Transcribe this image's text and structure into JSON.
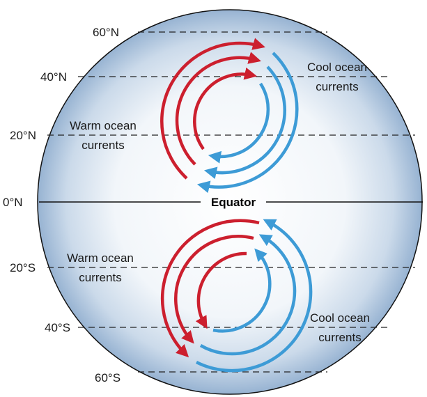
{
  "latitudes": {
    "lat_60n": "60°N",
    "lat_40n": "40°N",
    "lat_20n": "20°N",
    "lat_0n": "0°N",
    "lat_20s": "20°S",
    "lat_40s": "40°S",
    "lat_60s": "60°S"
  },
  "equator_label": "Equator",
  "north": {
    "warm_label_line1": "Warm ocean",
    "warm_label_line2": "currents",
    "cool_label_line1": "Cool ocean",
    "cool_label_line2": "currents"
  },
  "south": {
    "warm_label_line1": "Warm ocean",
    "warm_label_line2": "currents",
    "cool_label_line1": "Cool ocean",
    "cool_label_line2": "currents"
  },
  "colors": {
    "warm": "#cc1f2e",
    "cool": "#3d9bd6",
    "globe_center": "#ffffff",
    "globe_edge": "#9fb8d4",
    "outline": "#111111"
  }
}
